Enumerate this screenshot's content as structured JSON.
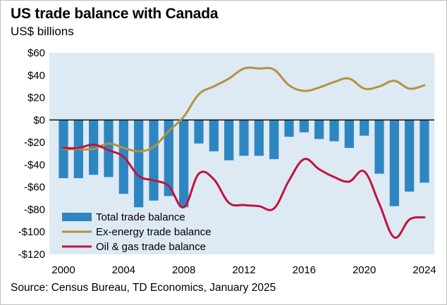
{
  "title": "US trade balance with Canada",
  "subtitle": "US$ billions",
  "source": "Source: Census Bureau, TD Economics, January 2025",
  "colors": {
    "plot_bg": "#dde9f3",
    "bars": "#2e86c1",
    "ex_energy": "#b3933a",
    "oil_gas": "#c0143c",
    "zero_line": "#000000"
  },
  "chart_data": {
    "type": "bar+line",
    "title": "US trade balance with Canada",
    "ylabel": "US$ billions",
    "xlabel": "",
    "ylim": [
      -120,
      60
    ],
    "xlim": [
      2000,
      2024
    ],
    "y_ticks": [
      {
        "value": 60,
        "label": "$60"
      },
      {
        "value": 40,
        "label": "$40"
      },
      {
        "value": 20,
        "label": "$20"
      },
      {
        "value": 0,
        "label": "$0"
      },
      {
        "value": -20,
        "label": "-$20"
      },
      {
        "value": -40,
        "label": "-$40"
      },
      {
        "value": -60,
        "label": "-$60"
      },
      {
        "value": -80,
        "label": "-$80"
      },
      {
        "value": -100,
        "label": "-$100"
      },
      {
        "value": -120,
        "label": "-$120"
      }
    ],
    "x_ticks": [
      {
        "value": 2000,
        "label": "2000"
      },
      {
        "value": 2004,
        "label": "2004"
      },
      {
        "value": 2008,
        "label": "2008"
      },
      {
        "value": 2012,
        "label": "2012"
      },
      {
        "value": 2016,
        "label": "2016"
      },
      {
        "value": 2020,
        "label": "2020"
      },
      {
        "value": 2024,
        "label": "2024"
      }
    ],
    "legend_position": "bottom-left",
    "series": [
      {
        "name": "Total trade balance",
        "kind": "bar",
        "x": [
          2000,
          2001,
          2002,
          2003,
          2004,
          2005,
          2006,
          2007,
          2008,
          2009,
          2010,
          2011,
          2012,
          2013,
          2014,
          2015,
          2016,
          2017,
          2018,
          2019,
          2020,
          2021,
          2022,
          2023,
          2024
        ],
        "values": [
          -52,
          -52,
          -49,
          -51,
          -66,
          -78,
          -72,
          -68,
          -78,
          -21,
          -28,
          -36,
          -32,
          -32,
          -35,
          -15,
          -11,
          -17,
          -19,
          -25,
          -14,
          -48,
          -77,
          -64,
          -56
        ]
      },
      {
        "name": "Ex-energy trade balance",
        "kind": "line",
        "x": [
          2000,
          2001,
          2002,
          2003,
          2004,
          2005,
          2006,
          2007,
          2008,
          2009,
          2010,
          2011,
          2012,
          2013,
          2014,
          2015,
          2016,
          2017,
          2018,
          2019,
          2020,
          2021,
          2022,
          2023,
          2024
        ],
        "values": [
          -26,
          -26,
          -26,
          -21,
          -25,
          -28,
          -24,
          -10,
          3,
          23,
          30,
          37,
          46,
          46,
          45,
          31,
          26,
          29,
          34,
          37,
          28,
          30,
          35,
          28,
          31
        ]
      },
      {
        "name": "Oil & gas trade balance",
        "kind": "line",
        "x": [
          2000,
          2001,
          2002,
          2003,
          2004,
          2005,
          2006,
          2007,
          2008,
          2009,
          2010,
          2011,
          2012,
          2013,
          2014,
          2015,
          2016,
          2017,
          2018,
          2019,
          2020,
          2021,
          2022,
          2023,
          2024
        ],
        "values": [
          -25,
          -25,
          -22,
          -27,
          -33,
          -50,
          -54,
          -59,
          -78,
          -48,
          -53,
          -74,
          -76,
          -77,
          -79,
          -54,
          -35,
          -44,
          -51,
          -55,
          -46,
          -75,
          -105,
          -89,
          -87
        ]
      }
    ]
  }
}
